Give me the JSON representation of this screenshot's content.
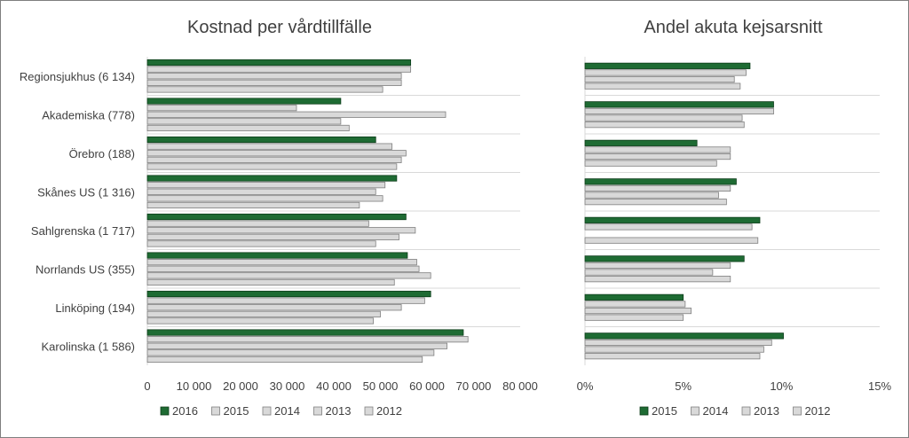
{
  "chart_data": [
    {
      "type": "bar",
      "orientation": "horizontal",
      "title": "Kostnad per vårdtillfälle",
      "categories": [
        "Regionsjukhus (6 134)",
        "Akademiska (778)",
        "Örebro (188)",
        "Skånes US (1 316)",
        "Sahlgrenska (1 717)",
        "Norrlands US (355)",
        "Linköping (194)",
        "Karolinska (1 586)"
      ],
      "series": [
        {
          "name": "2016",
          "color": "#1e6b33",
          "values": [
            56500,
            41500,
            49000,
            53500,
            55500,
            55800,
            60800,
            67800
          ]
        },
        {
          "name": "2015",
          "color": "#d9d9d9",
          "values": [
            56500,
            32000,
            52500,
            51000,
            47500,
            57800,
            59500,
            68800
          ]
        },
        {
          "name": "2014",
          "color": "#d9d9d9",
          "values": [
            54500,
            64000,
            55500,
            49000,
            57500,
            58300,
            54500,
            64300
          ]
        },
        {
          "name": "2013",
          "color": "#d9d9d9",
          "values": [
            54500,
            41500,
            54500,
            50500,
            54000,
            60800,
            50000,
            61500
          ]
        },
        {
          "name": "2012",
          "color": "#d9d9d9",
          "values": [
            50500,
            43300,
            53500,
            45500,
            49000,
            53000,
            48500,
            59000
          ]
        }
      ],
      "xlim": [
        0,
        80000
      ],
      "ticks": [
        "0",
        "10 000",
        "20 000",
        "30 000",
        "40 000",
        "50 000",
        "60 000",
        "70 000",
        "80 000"
      ],
      "grid": true,
      "legend": "bottom"
    },
    {
      "type": "bar",
      "orientation": "horizontal",
      "title": "Andel akuta kejsarsnitt",
      "categories": [
        "Regionsjukhus (6 134)",
        "Akademiska (778)",
        "Örebro (188)",
        "Skånes US (1 316)",
        "Sahlgrenska (1 717)",
        "Norrlands US (355)",
        "Linköping (194)",
        "Karolinska (1 586)"
      ],
      "series": [
        {
          "name": "2015",
          "color": "#1e6b33",
          "values": [
            8.4,
            9.6,
            5.7,
            7.7,
            8.9,
            8.1,
            5.0,
            10.1
          ]
        },
        {
          "name": "2014",
          "color": "#d9d9d9",
          "values": [
            8.2,
            9.6,
            7.4,
            7.4,
            8.5,
            7.4,
            5.1,
            9.5
          ]
        },
        {
          "name": "2013",
          "color": "#d9d9d9",
          "values": [
            7.6,
            8.0,
            7.4,
            6.8,
            null,
            6.5,
            5.4,
            9.1
          ]
        },
        {
          "name": "2012",
          "color": "#d9d9d9",
          "values": [
            7.9,
            8.1,
            6.7,
            7.2,
            8.8,
            7.4,
            5.0,
            8.9
          ]
        }
      ],
      "xlim": [
        0,
        15
      ],
      "ticks": [
        "0%",
        "5%",
        "10%",
        "15%"
      ],
      "grid": true,
      "legend": "bottom"
    }
  ]
}
